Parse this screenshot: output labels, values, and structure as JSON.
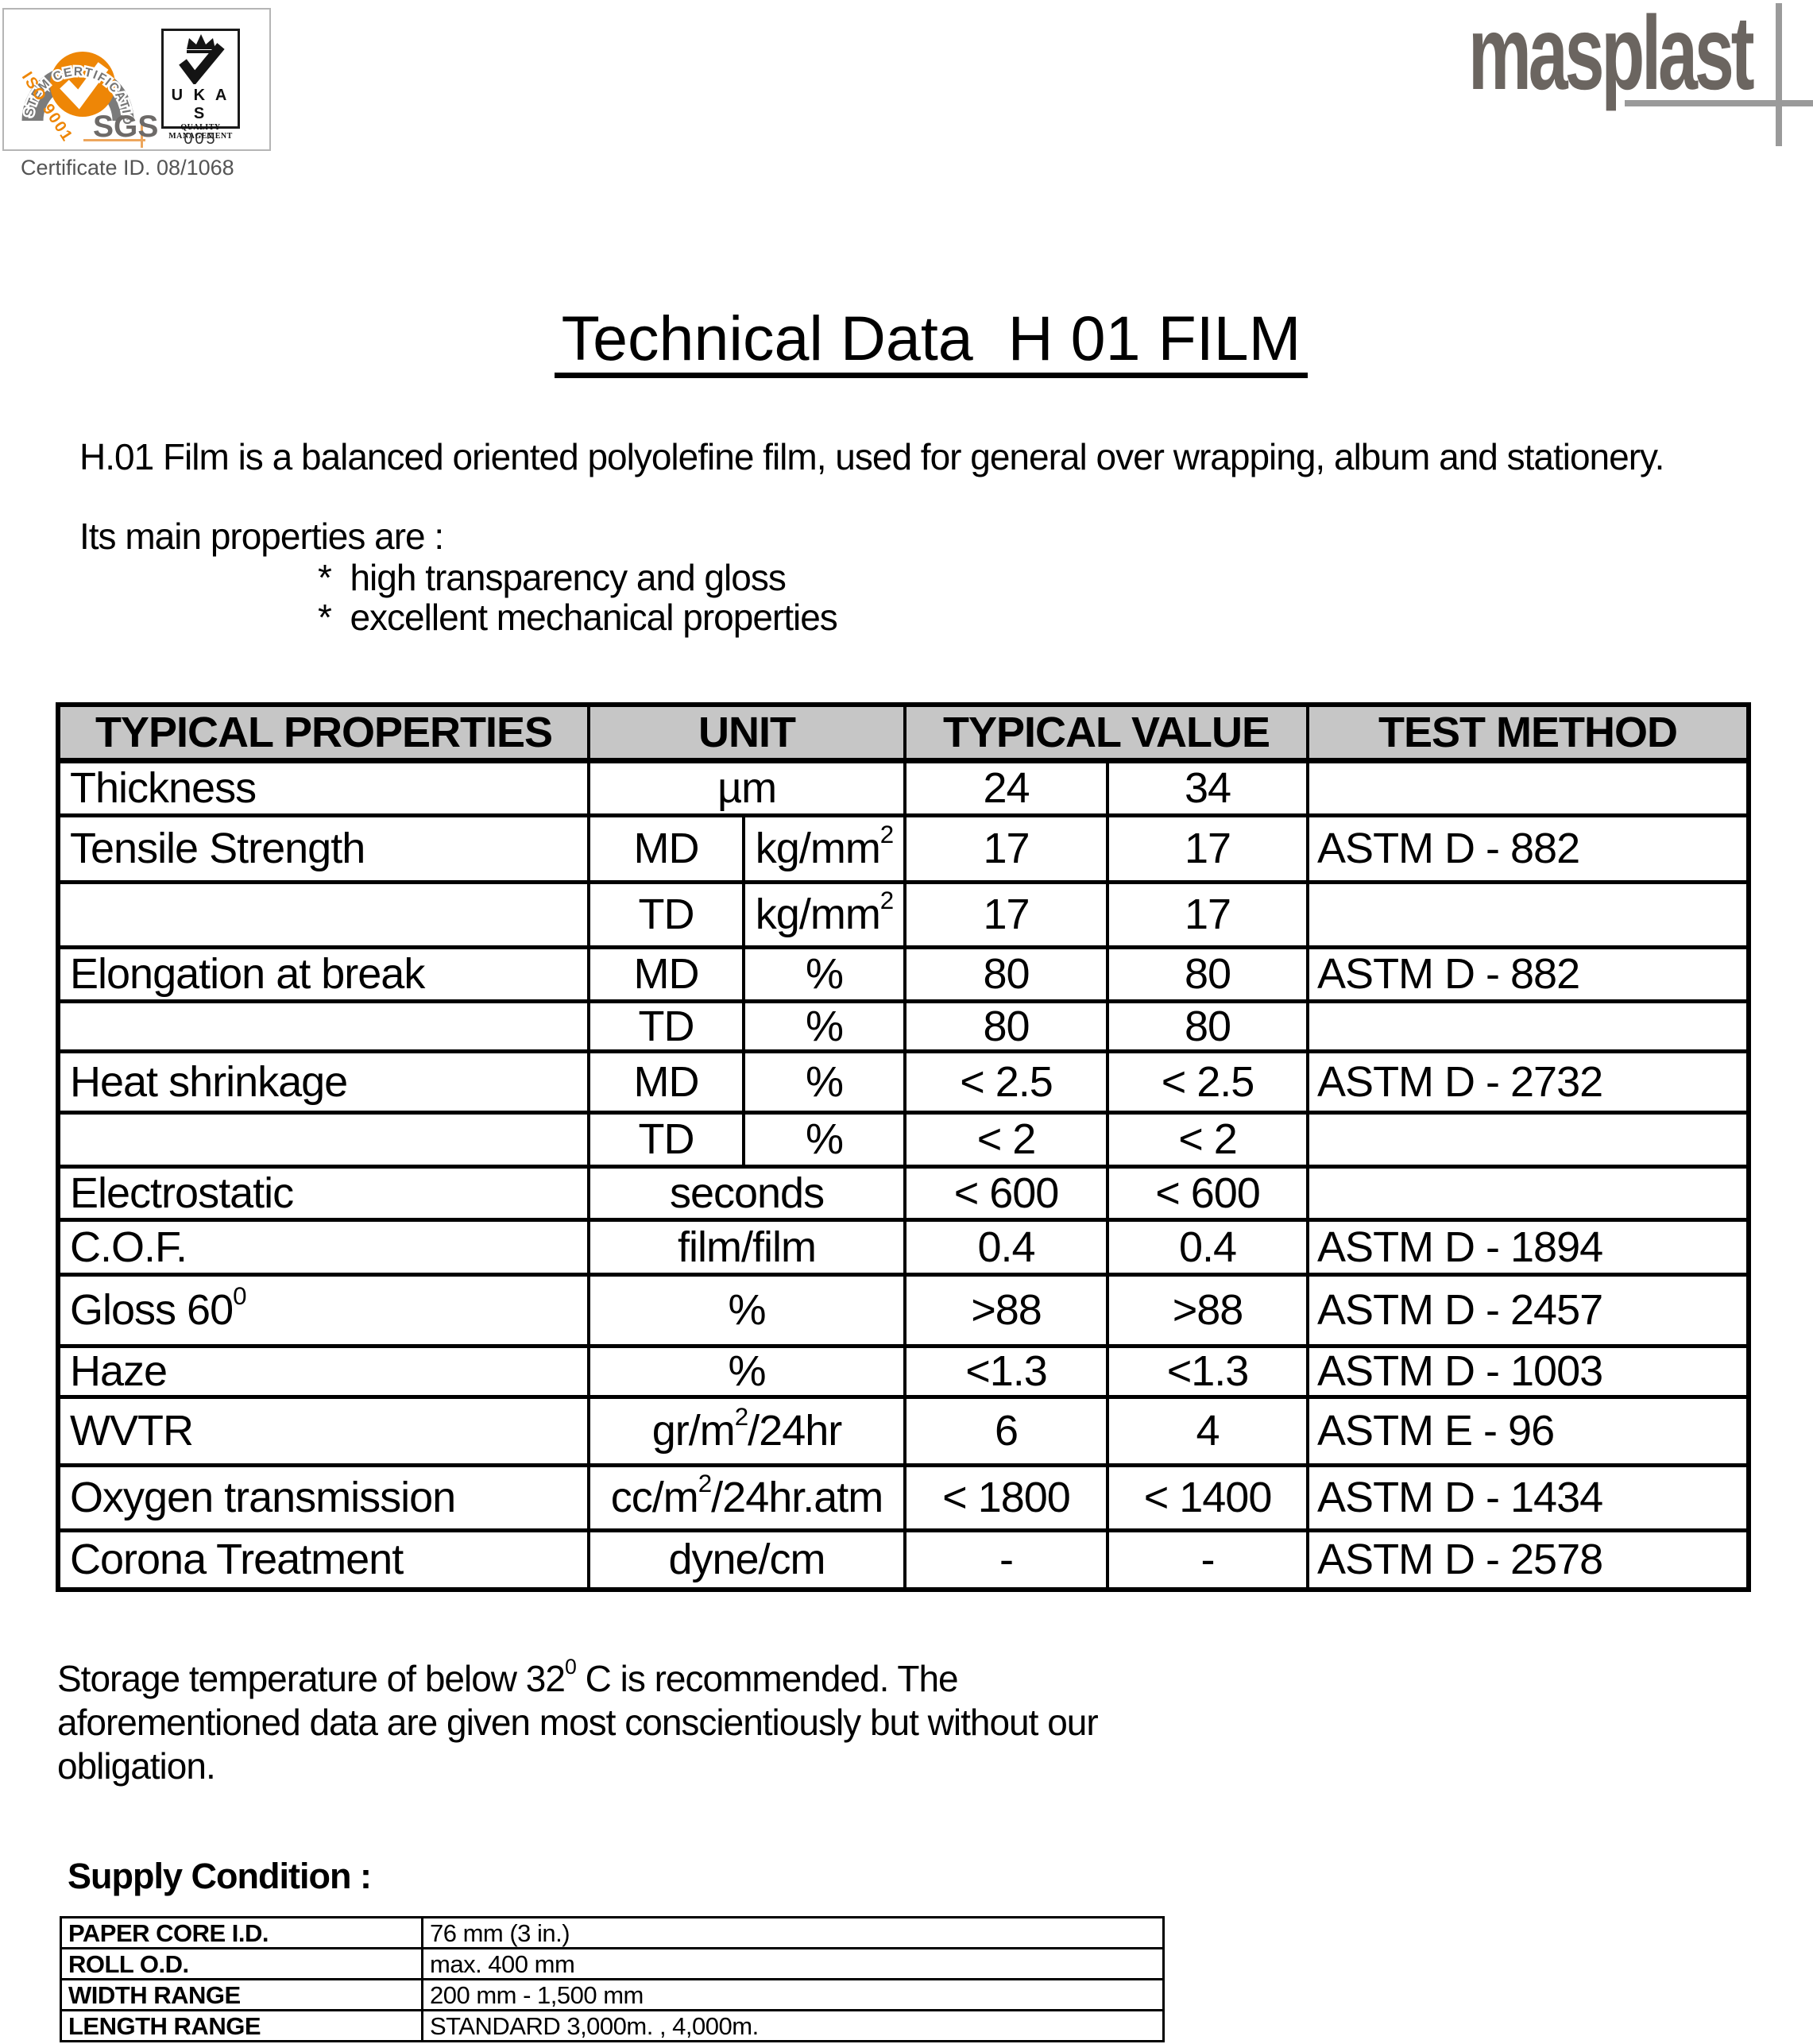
{
  "page": {
    "title": "Technical Data  H 01 FILM"
  },
  "certification": {
    "arc_text": "SYSTEM CERTIFICATION",
    "iso_label": "ISO 9001",
    "sgs_label": "SGS",
    "ukas_name": "U K A S",
    "ukas_sub1": "QUALITY",
    "ukas_sub2": "MANAGEMENT",
    "ukas_number": "005",
    "certificate_id": "Certificate ID. 08/1068"
  },
  "brand": {
    "logo_text": "masplast"
  },
  "intro": {
    "description": "H.01 Film is a balanced oriented polyolefine film, used for general over wrapping, album and stationery.",
    "properties_lead": "Its main properties are :",
    "bullets": [
      "*  high transparency and gloss",
      "*  excellent mechanical properties"
    ]
  },
  "properties_table": {
    "headers": [
      "TYPICAL PROPERTIES",
      "UNIT",
      "TYPICAL VALUE",
      "TEST METHOD"
    ],
    "rows": [
      {
        "property": "Thickness",
        "dir": "",
        "unit": "µm",
        "span": true,
        "val24": "24",
        "val34": "34",
        "test": ""
      },
      {
        "property": "Tensile Strength",
        "dir": "MD",
        "unit": "kg/mm^2^",
        "span": false,
        "val24": "17",
        "val34": "17",
        "test": "ASTM D - 882"
      },
      {
        "property": "",
        "dir": "TD",
        "unit": "kg/mm^2^",
        "span": false,
        "val24": "17",
        "val34": "17",
        "test": ""
      },
      {
        "property": "Elongation at break",
        "dir": "MD",
        "unit": "%",
        "span": false,
        "val24": "80",
        "val34": "80",
        "test": "ASTM D - 882"
      },
      {
        "property": "",
        "dir": "TD",
        "unit": "%",
        "span": false,
        "val24": "80",
        "val34": "80",
        "test": ""
      },
      {
        "property": "Heat shrinkage",
        "dir": "MD",
        "unit": "%",
        "span": false,
        "val24": "< 2.5",
        "val34": "< 2.5",
        "test": "ASTM D - 2732"
      },
      {
        "property": "",
        "dir": "TD",
        "unit": "%",
        "span": false,
        "val24": "< 2",
        "val34": "< 2",
        "test": ""
      },
      {
        "property": "Electrostatic",
        "dir": "",
        "unit": "seconds",
        "span": true,
        "val24": "< 600",
        "val34": "< 600",
        "test": ""
      },
      {
        "property": "C.O.F.",
        "dir": "",
        "unit": "film/film",
        "span": true,
        "val24": "0.4",
        "val34": "0.4",
        "test": "ASTM D - 1894"
      },
      {
        "property": "Gloss 60^0^",
        "dir": "",
        "unit": "%",
        "span": true,
        "val24": ">88",
        "val34": ">88",
        "test": "ASTM D - 2457"
      },
      {
        "property": "Haze",
        "dir": "",
        "unit": "%",
        "span": true,
        "val24": "<1.3",
        "val34": "<1.3",
        "test": "ASTM D - 1003"
      },
      {
        "property": "WVTR",
        "dir": "",
        "unit": "gr/m^2^/24hr",
        "span": true,
        "val24": "6",
        "val34": "4",
        "test": "ASTM E - 96"
      },
      {
        "property": "Oxygen transmission",
        "dir": "",
        "unit": "cc/m^2^/24hr.atm",
        "span": true,
        "val24": "< 1800",
        "val34": "< 1400",
        "test": "ASTM D - 1434"
      },
      {
        "property": "Corona Treatment",
        "dir": "",
        "unit": "dyne/cm",
        "span": true,
        "val24": "-",
        "val34": "-",
        "test": "ASTM D - 2578"
      }
    ]
  },
  "storage_note_lines": [
    "Storage temperature of below 32^0^ C is recommended. The",
    "aforementioned data are given most conscientiously but without our",
    "obligation."
  ],
  "supply": {
    "heading": "Supply Condition :",
    "rows": [
      {
        "label": "PAPER CORE I.D.",
        "value": "76 mm (3 in.)"
      },
      {
        "label": "ROLL O.D.",
        "value": "max. 400 mm"
      },
      {
        "label": "WIDTH RANGE",
        "value": "200 mm - 1,500 mm"
      },
      {
        "label": "LENGTH RANGE",
        "value": "STANDARD 3,000m. , 4,000m."
      }
    ]
  },
  "colors": {
    "accent_orange": "#ee8606",
    "arc_gray": "#7b7b7b",
    "sgs_text_gray": "#6d6a68",
    "logo_gray": "#6b6560",
    "logo_line_gray": "#9a9a9a",
    "table_header_fill": "#c6c6c6",
    "certificate_text": "#545454"
  }
}
